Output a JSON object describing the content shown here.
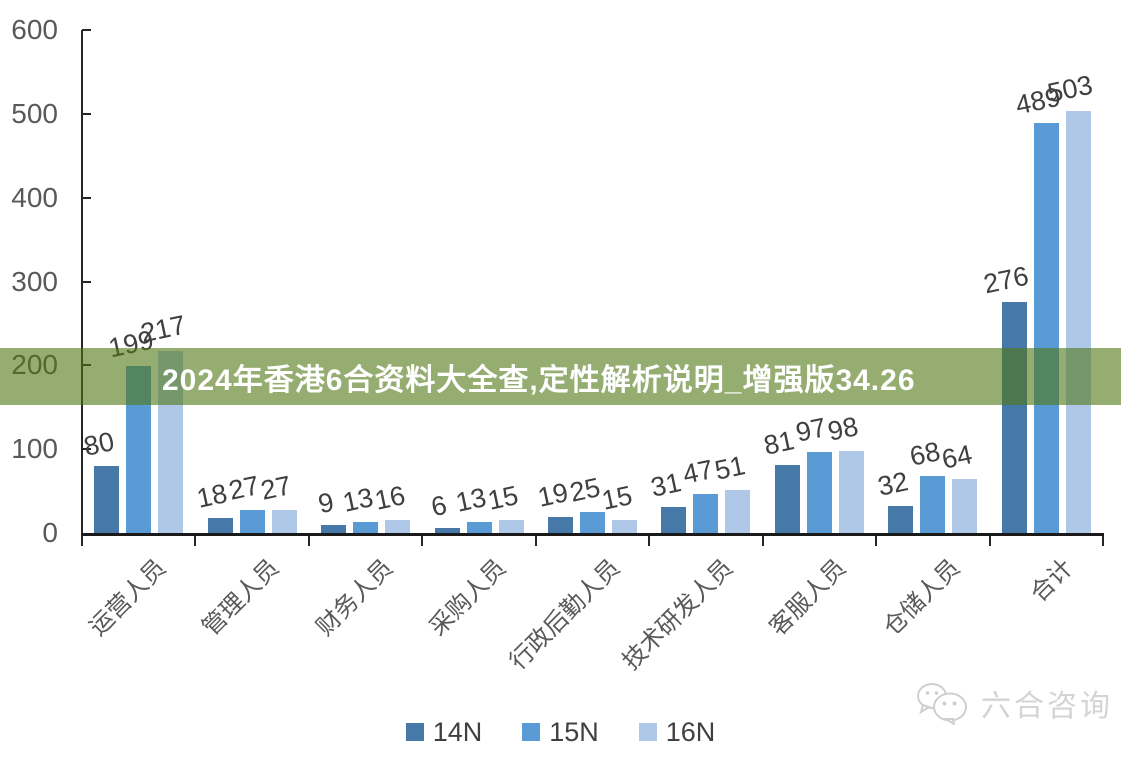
{
  "banner": {
    "text": "2024年香港6合资料大全查,定性解析说明_增强版34.26",
    "bg_color": "#507614",
    "bg_opacity": 0.6,
    "text_color": "#FFFFFF"
  },
  "chart_data": {
    "type": "bar",
    "title": "",
    "xlabel": "",
    "ylabel": "",
    "categories": [
      "运营人员",
      "管理人员",
      "财务人员",
      "采购人员",
      "行政后勤人员",
      "技术研发人员",
      "客服人员",
      "仓储人员",
      "合计"
    ],
    "series": [
      {
        "name": "14N",
        "color": "#4678A8",
        "values": [
          80,
          18,
          9,
          6,
          19,
          31,
          81,
          32,
          276
        ]
      },
      {
        "name": "15N",
        "color": "#5B9BD5",
        "values": [
          199,
          27,
          13,
          13,
          25,
          47,
          97,
          68,
          489
        ]
      },
      {
        "name": "16N",
        "color": "#AFC8E8",
        "values": [
          217,
          27,
          16,
          15,
          15,
          51,
          98,
          64,
          503
        ]
      }
    ],
    "ylim": [
      0,
      600
    ],
    "yticks": [
      0,
      100,
      200,
      300,
      400,
      500,
      600
    ],
    "grid": false,
    "data_labels": true,
    "legend_position": "bottom"
  },
  "watermark": {
    "icon": "wechat-icon",
    "text": "六合咨询",
    "color": "#D4D4D4"
  },
  "colors": {
    "axis": "#262626",
    "tick_label": "#595959",
    "data_label": "#3F3F3F",
    "category_label": "#595959"
  }
}
